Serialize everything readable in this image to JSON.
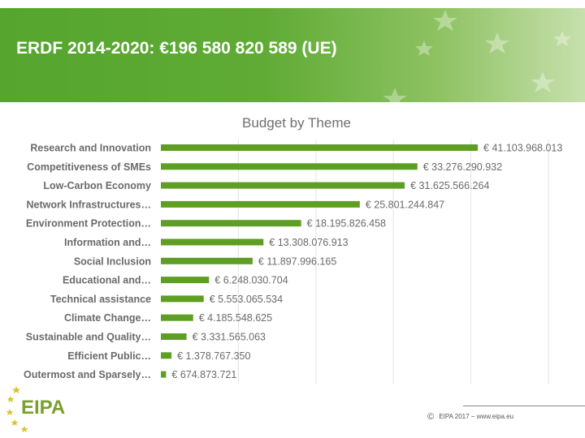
{
  "header": {
    "title": "ERDF 2014-2020: €196 580 820 589 (UE)",
    "bg_color": "#5aa832"
  },
  "chart_data": {
    "type": "bar",
    "orientation": "horizontal",
    "title": "Budget by Theme",
    "bar_color": "#5d9e23",
    "grid": true,
    "xlim": [
      0,
      45000000000
    ],
    "categories": [
      "Research and Innovation",
      "Competitiveness of SMEs",
      "Low-Carbon Economy",
      "Network Infrastructures…",
      "Environment Protection…",
      "Information and…",
      "Social Inclusion",
      "Educational and…",
      "Technical assistance",
      "Climate Change…",
      "Sustainable and Quality…",
      "Efficient Public…",
      "Outermost and Sparsely…"
    ],
    "values": [
      41103968013,
      33276290932,
      31625566264,
      25801244847,
      18195826458,
      13308076913,
      11897996165,
      6248030704,
      5553065534,
      4185548625,
      3331565063,
      1378767350,
      674873721
    ],
    "value_labels": [
      "€ 41.103.968.013",
      "€ 33.276.290.932",
      "€ 31.625.566.264",
      "€ 25.801.244.847",
      "€ 18.195.826.458",
      "€ 13.308.076.913",
      "€ 11.897.996.165",
      "€ 6.248.030.704",
      "€ 5.553.065.534",
      "€ 4.185.548.625",
      "€ 3.331.565.063",
      "€ 1.378.767.350",
      "€ 674.873.721"
    ]
  },
  "logo": {
    "text": "EIPA",
    "color": "#7a9f2e",
    "star_color": "#d7c42a"
  },
  "footer": {
    "copyright_symbol": "©",
    "text": "EIPA 2017 − www.eipa.eu"
  }
}
